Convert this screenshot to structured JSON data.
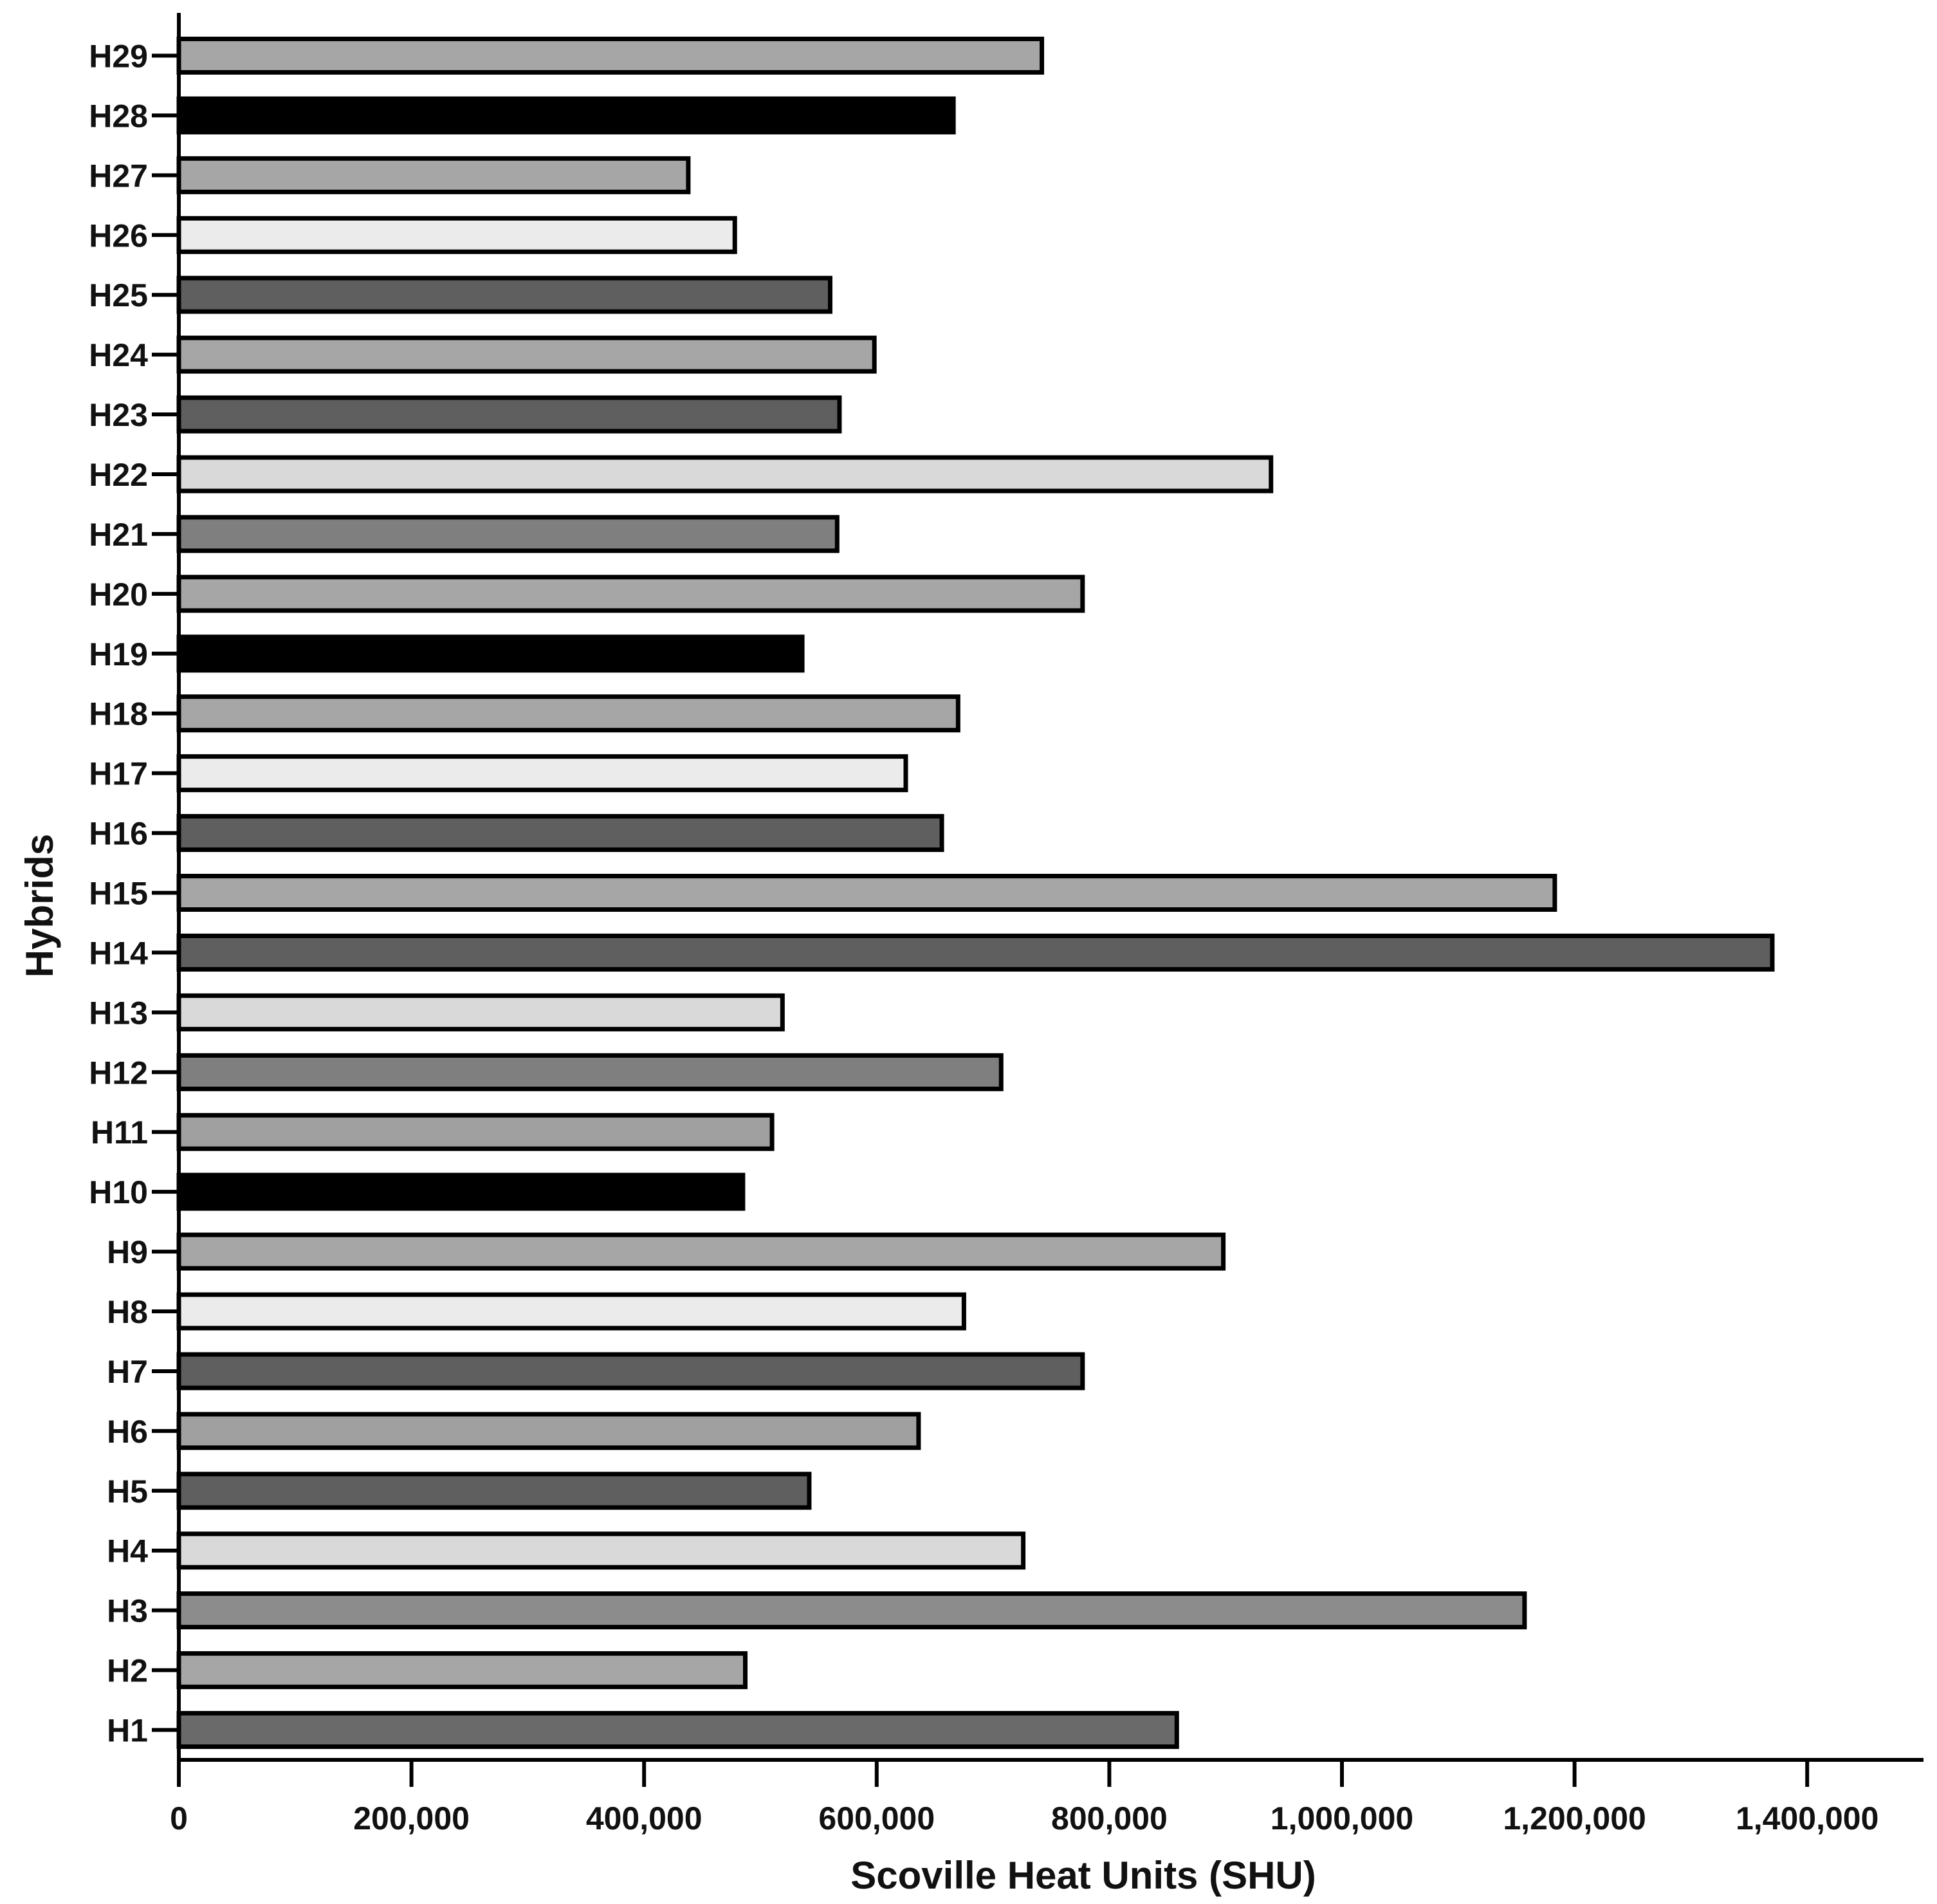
{
  "chart_data": {
    "type": "bar",
    "orientation": "horizontal",
    "xlabel": "Scoville Heat Units (SHU)",
    "ylabel": "Hybrids",
    "xlim": [
      0,
      1500000
    ],
    "x_ticks": [
      0,
      200000,
      400000,
      600000,
      800000,
      1000000,
      1200000,
      1400000
    ],
    "x_tick_labels": [
      "0",
      "200,000",
      "400,000",
      "600,000",
      "800,000",
      "1,000,000",
      "1,200,000",
      "1,400,000"
    ],
    "grid": false,
    "legend": "none",
    "categories": [
      "H1",
      "H2",
      "H3",
      "H4",
      "H5",
      "H6",
      "H7",
      "H8",
      "H9",
      "H10",
      "H11",
      "H12",
      "H13",
      "H14",
      "H15",
      "H16",
      "H17",
      "H18",
      "H19",
      "H20",
      "H21",
      "H22",
      "H23",
      "H24",
      "H25",
      "H26",
      "H27",
      "H28",
      "H29"
    ],
    "values": [
      858000,
      487000,
      1157000,
      726000,
      542000,
      636000,
      777000,
      675000,
      898000,
      485000,
      510000,
      707000,
      519000,
      1370000,
      1183000,
      656000,
      625000,
      670000,
      536000,
      777000,
      566000,
      939000,
      568000,
      598000,
      560000,
      478000,
      438000,
      666000,
      742000
    ],
    "colors": [
      "#6a6a6a",
      "#a6a6a6",
      "#8c8c8c",
      "#d9d9d9",
      "#5f5f5f",
      "#a0a0a0",
      "#5f5f5f",
      "#ebebeb",
      "#a6a6a6",
      "#000000",
      "#a0a0a0",
      "#7f7f7f",
      "#d9d9d9",
      "#5f5f5f",
      "#a6a6a6",
      "#5f5f5f",
      "#ebebeb",
      "#a6a6a6",
      "#000000",
      "#a6a6a6",
      "#7f7f7f",
      "#d9d9d9",
      "#5f5f5f",
      "#a6a6a6",
      "#5f5f5f",
      "#ebebeb",
      "#a6a6a6",
      "#000000",
      "#a6a6a6"
    ]
  }
}
